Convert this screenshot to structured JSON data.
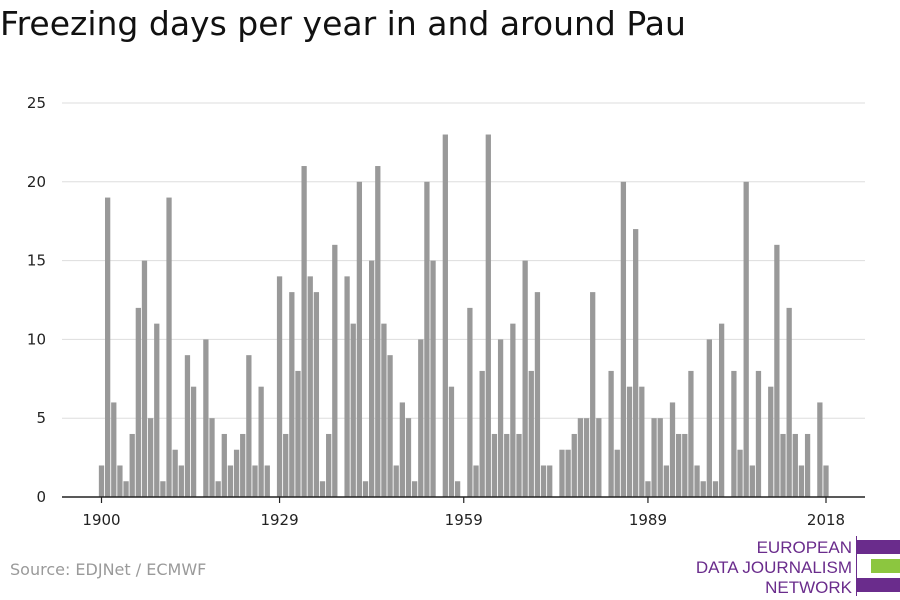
{
  "title": "Freezing days per year in and around Pau",
  "source": "Source: EDJNet / ECMWF",
  "logo": {
    "lines": [
      "EUROPEAN",
      "DATA JOURNALISM",
      "NETWORK"
    ],
    "colors": {
      "purple": "#6a2c8c",
      "green": "#8cc63f"
    }
  },
  "chart_data": {
    "type": "bar",
    "title": "Freezing days per year in and around Pau",
    "xlabel": "",
    "ylabel": "",
    "ylim": [
      0,
      25
    ],
    "yticks": [
      0,
      5,
      10,
      15,
      20,
      25
    ],
    "xticks": [
      1900,
      1929,
      1959,
      1989,
      2018
    ],
    "grid": true,
    "bar_color": "#999999",
    "x": [
      1900,
      1901,
      1902,
      1903,
      1904,
      1905,
      1906,
      1907,
      1908,
      1909,
      1910,
      1911,
      1912,
      1913,
      1914,
      1915,
      1916,
      1917,
      1918,
      1919,
      1920,
      1921,
      1922,
      1923,
      1924,
      1925,
      1926,
      1927,
      1928,
      1929,
      1930,
      1931,
      1932,
      1933,
      1934,
      1935,
      1936,
      1937,
      1938,
      1939,
      1940,
      1941,
      1942,
      1943,
      1944,
      1945,
      1946,
      1947,
      1948,
      1949,
      1950,
      1951,
      1952,
      1953,
      1954,
      1955,
      1956,
      1957,
      1958,
      1959,
      1960,
      1961,
      1962,
      1963,
      1964,
      1965,
      1966,
      1967,
      1968,
      1969,
      1970,
      1971,
      1972,
      1973,
      1974,
      1975,
      1976,
      1977,
      1978,
      1979,
      1980,
      1981,
      1982,
      1983,
      1984,
      1985,
      1986,
      1987,
      1988,
      1989,
      1990,
      1991,
      1992,
      1993,
      1994,
      1995,
      1996,
      1997,
      1998,
      1999,
      2000,
      2001,
      2002,
      2003,
      2004,
      2005,
      2006,
      2007,
      2008,
      2009,
      2010,
      2011,
      2012,
      2013,
      2014,
      2015,
      2016,
      2017,
      2018
    ],
    "values": [
      2,
      19,
      6,
      2,
      1,
      4,
      12,
      15,
      5,
      11,
      1,
      19,
      3,
      2,
      9,
      7,
      0,
      10,
      5,
      1,
      4,
      2,
      3,
      4,
      9,
      2,
      7,
      2,
      0,
      14,
      4,
      13,
      8,
      21,
      14,
      13,
      1,
      4,
      16,
      0,
      14,
      11,
      20,
      1,
      15,
      21,
      11,
      9,
      2,
      6,
      5,
      1,
      10,
      20,
      15,
      0,
      23,
      7,
      1,
      0,
      12,
      2,
      8,
      23,
      4,
      10,
      4,
      11,
      4,
      15,
      8,
      13,
      2,
      2,
      0,
      3,
      3,
      4,
      5,
      5,
      13,
      5,
      0,
      8,
      3,
      20,
      7,
      17,
      7,
      1,
      5,
      5,
      2,
      6,
      4,
      4,
      8,
      2,
      1,
      10,
      1,
      11,
      0,
      8,
      3,
      20,
      2,
      8,
      0,
      7,
      16,
      4,
      12,
      4,
      2,
      4,
      0,
      6,
      2
    ]
  }
}
